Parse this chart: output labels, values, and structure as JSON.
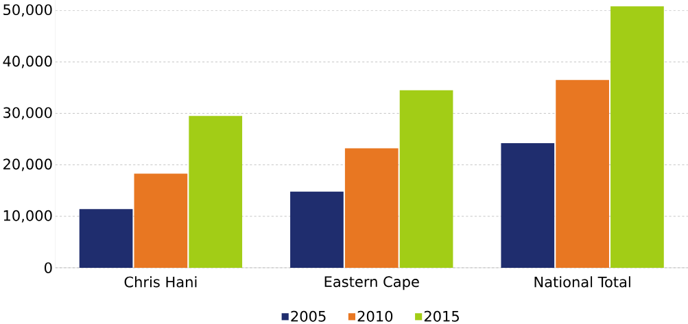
{
  "chart_data": {
    "type": "bar",
    "categories": [
      "Chris Hani",
      "Eastern Cape",
      "National Total"
    ],
    "series": [
      {
        "name": "2005",
        "color": "#1f2d6e",
        "values": [
          11400,
          14800,
          24200
        ]
      },
      {
        "name": "2010",
        "color": "#e87722",
        "values": [
          18300,
          23200,
          36500
        ]
      },
      {
        "name": "2015",
        "color": "#a2cd16",
        "values": [
          29500,
          34500,
          50800
        ]
      }
    ],
    "ylim": [
      0,
      52000
    ],
    "yticks": [
      {
        "value": 0,
        "label": "0"
      },
      {
        "value": 10000,
        "label": "10,000"
      },
      {
        "value": 20000,
        "label": "20,000"
      },
      {
        "value": 30000,
        "label": "30,000"
      },
      {
        "value": 40000,
        "label": "40,000"
      },
      {
        "value": 50000,
        "label": "50,000"
      }
    ],
    "grid": "y",
    "legend": "bottom"
  }
}
